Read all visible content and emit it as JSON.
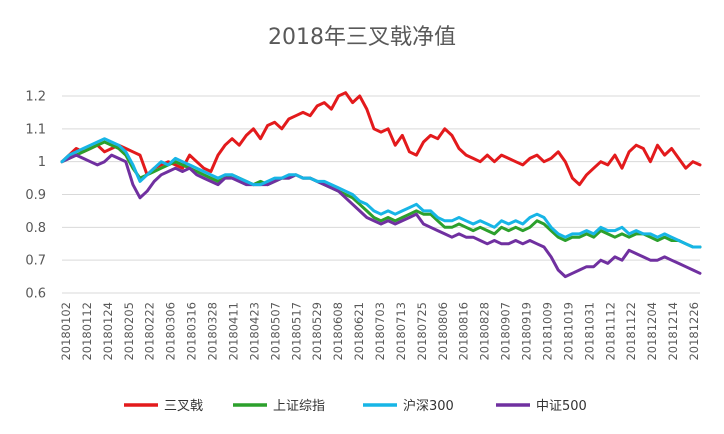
{
  "chart_data": {
    "type": "line",
    "title": "2018年三叉戟净值",
    "xlabel": "",
    "ylabel": "",
    "ylim": [
      0.6,
      1.2
    ],
    "yticks": [
      "0.6",
      "0.7",
      "0.8",
      "0.9",
      "1",
      "1.1",
      "1.2"
    ],
    "grid": true,
    "legend": "bottom",
    "x_tick_labels": [
      "20180102",
      "20180112",
      "20180124",
      "20180205",
      "20180222",
      "20180306",
      "20180316",
      "20180328",
      "20180411",
      "20180423",
      "20180507",
      "20180517",
      "20180529",
      "20180608",
      "20180621",
      "20180703",
      "20180713",
      "20180725",
      "20180806",
      "20180816",
      "20180828",
      "20180907",
      "20180919",
      "20181009",
      "20181019",
      "20181031",
      "20181112",
      "20181122",
      "20181204",
      "20181214",
      "20181226"
    ],
    "series": [
      {
        "name": "三叉戟",
        "color": "#e31a1c",
        "values": [
          1.0,
          1.02,
          1.04,
          1.03,
          1.04,
          1.05,
          1.03,
          1.04,
          1.05,
          1.04,
          1.03,
          1.02,
          0.96,
          0.98,
          0.99,
          1.0,
          0.99,
          0.98,
          1.02,
          1.0,
          0.98,
          0.97,
          1.02,
          1.05,
          1.07,
          1.05,
          1.08,
          1.1,
          1.07,
          1.11,
          1.12,
          1.1,
          1.13,
          1.14,
          1.15,
          1.14,
          1.17,
          1.18,
          1.16,
          1.2,
          1.21,
          1.18,
          1.2,
          1.16,
          1.1,
          1.09,
          1.1,
          1.05,
          1.08,
          1.03,
          1.02,
          1.06,
          1.08,
          1.07,
          1.1,
          1.08,
          1.04,
          1.02,
          1.01,
          1.0,
          1.02,
          1.0,
          1.02,
          1.01,
          1.0,
          0.99,
          1.01,
          1.02,
          1.0,
          1.01,
          1.03,
          1.0,
          0.95,
          0.93,
          0.96,
          0.98,
          1.0,
          0.99,
          1.02,
          0.98,
          1.03,
          1.05,
          1.04,
          1.0,
          1.05,
          1.02,
          1.04,
          1.01,
          0.98,
          1.0,
          0.99
        ]
      },
      {
        "name": "上证综指",
        "color": "#2ca02c",
        "values": [
          1.0,
          1.01,
          1.02,
          1.03,
          1.04,
          1.05,
          1.06,
          1.05,
          1.04,
          1.02,
          0.98,
          0.95,
          0.96,
          0.97,
          0.98,
          0.99,
          1.0,
          0.99,
          0.98,
          0.97,
          0.96,
          0.95,
          0.94,
          0.95,
          0.96,
          0.95,
          0.94,
          0.93,
          0.94,
          0.93,
          0.94,
          0.95,
          0.95,
          0.96,
          0.95,
          0.95,
          0.94,
          0.93,
          0.92,
          0.91,
          0.9,
          0.89,
          0.87,
          0.85,
          0.83,
          0.82,
          0.83,
          0.82,
          0.83,
          0.84,
          0.85,
          0.84,
          0.84,
          0.82,
          0.8,
          0.8,
          0.81,
          0.8,
          0.79,
          0.8,
          0.79,
          0.78,
          0.8,
          0.79,
          0.8,
          0.79,
          0.8,
          0.82,
          0.81,
          0.79,
          0.77,
          0.76,
          0.77,
          0.77,
          0.78,
          0.77,
          0.79,
          0.78,
          0.77,
          0.78,
          0.77,
          0.78,
          0.78,
          0.77,
          0.76,
          0.77,
          0.76,
          0.76,
          0.75,
          0.74,
          0.74
        ]
      },
      {
        "name": "沪深300",
        "color": "#17b5e6",
        "values": [
          1.0,
          1.02,
          1.03,
          1.04,
          1.05,
          1.06,
          1.07,
          1.06,
          1.05,
          1.03,
          0.99,
          0.94,
          0.96,
          0.98,
          1.0,
          0.99,
          1.01,
          1.0,
          0.99,
          0.98,
          0.97,
          0.96,
          0.95,
          0.96,
          0.96,
          0.95,
          0.94,
          0.93,
          0.93,
          0.94,
          0.95,
          0.95,
          0.96,
          0.96,
          0.95,
          0.95,
          0.94,
          0.94,
          0.93,
          0.92,
          0.91,
          0.9,
          0.88,
          0.87,
          0.85,
          0.84,
          0.85,
          0.84,
          0.85,
          0.86,
          0.87,
          0.85,
          0.85,
          0.83,
          0.82,
          0.82,
          0.83,
          0.82,
          0.81,
          0.82,
          0.81,
          0.8,
          0.82,
          0.81,
          0.82,
          0.81,
          0.83,
          0.84,
          0.83,
          0.8,
          0.78,
          0.77,
          0.78,
          0.78,
          0.79,
          0.78,
          0.8,
          0.79,
          0.79,
          0.8,
          0.78,
          0.79,
          0.78,
          0.78,
          0.77,
          0.78,
          0.77,
          0.76,
          0.75,
          0.74,
          0.74
        ]
      },
      {
        "name": "中证500",
        "color": "#7030a0",
        "values": [
          1.0,
          1.01,
          1.02,
          1.01,
          1.0,
          0.99,
          1.0,
          1.02,
          1.01,
          1.0,
          0.93,
          0.89,
          0.91,
          0.94,
          0.96,
          0.97,
          0.98,
          0.97,
          0.98,
          0.96,
          0.95,
          0.94,
          0.93,
          0.95,
          0.95,
          0.94,
          0.93,
          0.93,
          0.93,
          0.93,
          0.94,
          0.95,
          0.95,
          0.96,
          0.95,
          0.95,
          0.94,
          0.93,
          0.92,
          0.91,
          0.89,
          0.87,
          0.85,
          0.83,
          0.82,
          0.81,
          0.82,
          0.81,
          0.82,
          0.83,
          0.84,
          0.81,
          0.8,
          0.79,
          0.78,
          0.77,
          0.78,
          0.77,
          0.77,
          0.76,
          0.75,
          0.76,
          0.75,
          0.75,
          0.76,
          0.75,
          0.76,
          0.75,
          0.74,
          0.71,
          0.67,
          0.65,
          0.66,
          0.67,
          0.68,
          0.68,
          0.7,
          0.69,
          0.71,
          0.7,
          0.73,
          0.72,
          0.71,
          0.7,
          0.7,
          0.71,
          0.7,
          0.69,
          0.68,
          0.67,
          0.66
        ]
      }
    ]
  }
}
